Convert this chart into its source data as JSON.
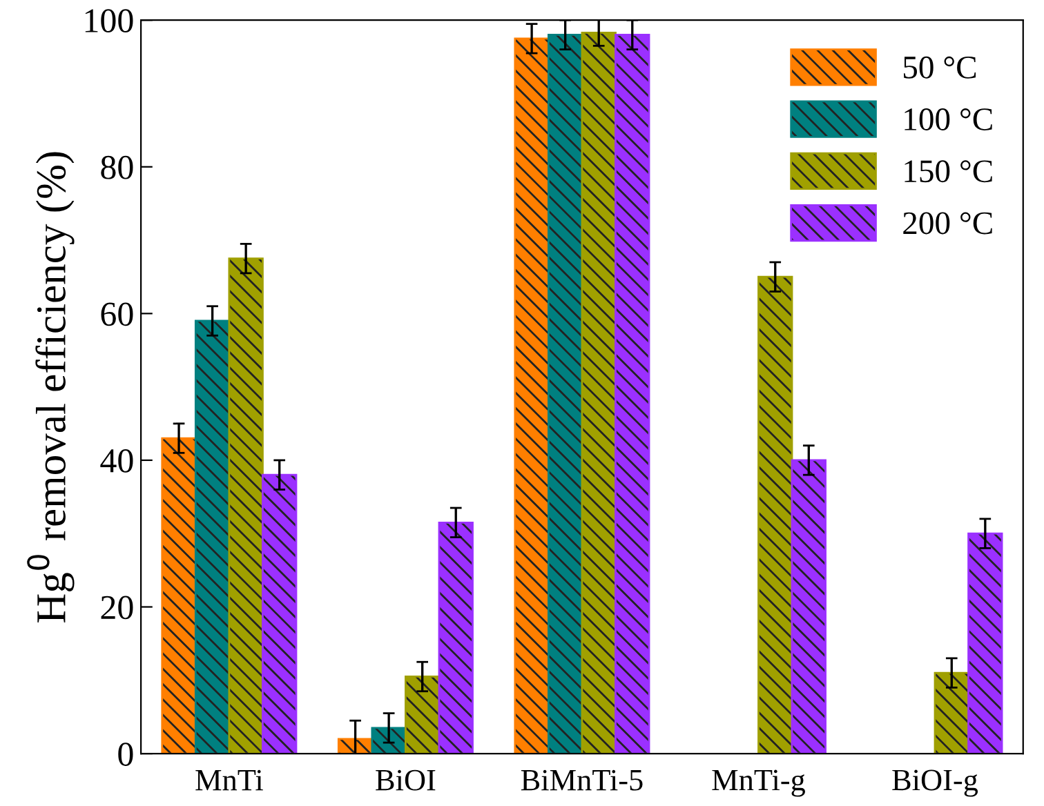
{
  "chart_data": {
    "type": "bar",
    "ylabel": "Hg$^{0}$ removal efficiency (%)",
    "categories": [
      "MnTi",
      "BiOI",
      "BiMnTi-5",
      "MnTi-g",
      "BiOI-g"
    ],
    "series": [
      {
        "name": "50 °C",
        "color": "#ff7f00",
        "values": [
          43,
          2,
          97.5,
          null,
          null
        ],
        "errors": [
          2,
          2.5,
          2,
          null,
          null
        ]
      },
      {
        "name": "100 °C",
        "color": "#008080",
        "values": [
          59,
          3.5,
          98,
          null,
          null
        ],
        "errors": [
          2,
          2,
          2,
          null,
          null
        ]
      },
      {
        "name": "150 °C",
        "color": "#a0a000",
        "values": [
          67.5,
          10.5,
          98.3,
          65,
          11
        ],
        "errors": [
          2,
          2,
          1.8,
          2,
          2
        ]
      },
      {
        "name": "200 °C",
        "color": "#9b30ff",
        "values": [
          38,
          31.5,
          98,
          40,
          30
        ],
        "errors": [
          2,
          2,
          2,
          2,
          2
        ]
      }
    ],
    "ylim": [
      0,
      100
    ],
    "yticks": [
      0,
      20,
      40,
      60,
      80,
      100
    ],
    "grid": false,
    "legend": "top right"
  }
}
